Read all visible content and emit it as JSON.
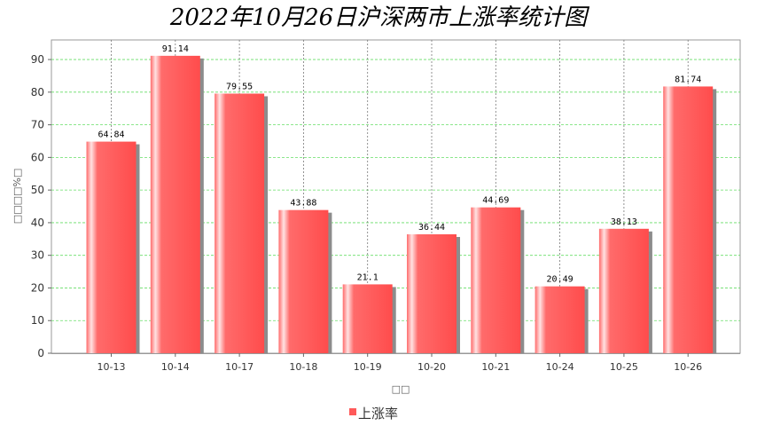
{
  "chart_data": {
    "type": "bar",
    "title": "2022年10月26日沪深两市上涨率统计图",
    "xlabel": "□□",
    "ylabel": "□□□□%□",
    "categories": [
      "10-13",
      "10-14",
      "10-17",
      "10-18",
      "10-19",
      "10-20",
      "10-21",
      "10-24",
      "10-25",
      "10-26"
    ],
    "series": [
      {
        "name": "上涨率",
        "values": [
          64.84,
          91.14,
          79.55,
          43.88,
          21.1,
          36.44,
          44.69,
          20.49,
          38.13,
          81.74
        ]
      }
    ],
    "value_labels": [
      "64.84",
      "91.14",
      "79.55",
      "43.88",
      "21.1",
      "36.44",
      "44.69",
      "20.49",
      "38.13",
      "81.74"
    ],
    "ylim": [
      0,
      96
    ],
    "yticks": [
      0,
      10,
      20,
      30,
      40,
      50,
      60,
      70,
      80,
      90
    ],
    "grid": true,
    "legend_position": "bottom-center",
    "colors": {
      "bar": "#ff5a5a",
      "bar_highlight": "#ffd6d6",
      "shadow": "#8c8c8c",
      "grid": "#66dd66",
      "vgrid": "#777777"
    }
  }
}
